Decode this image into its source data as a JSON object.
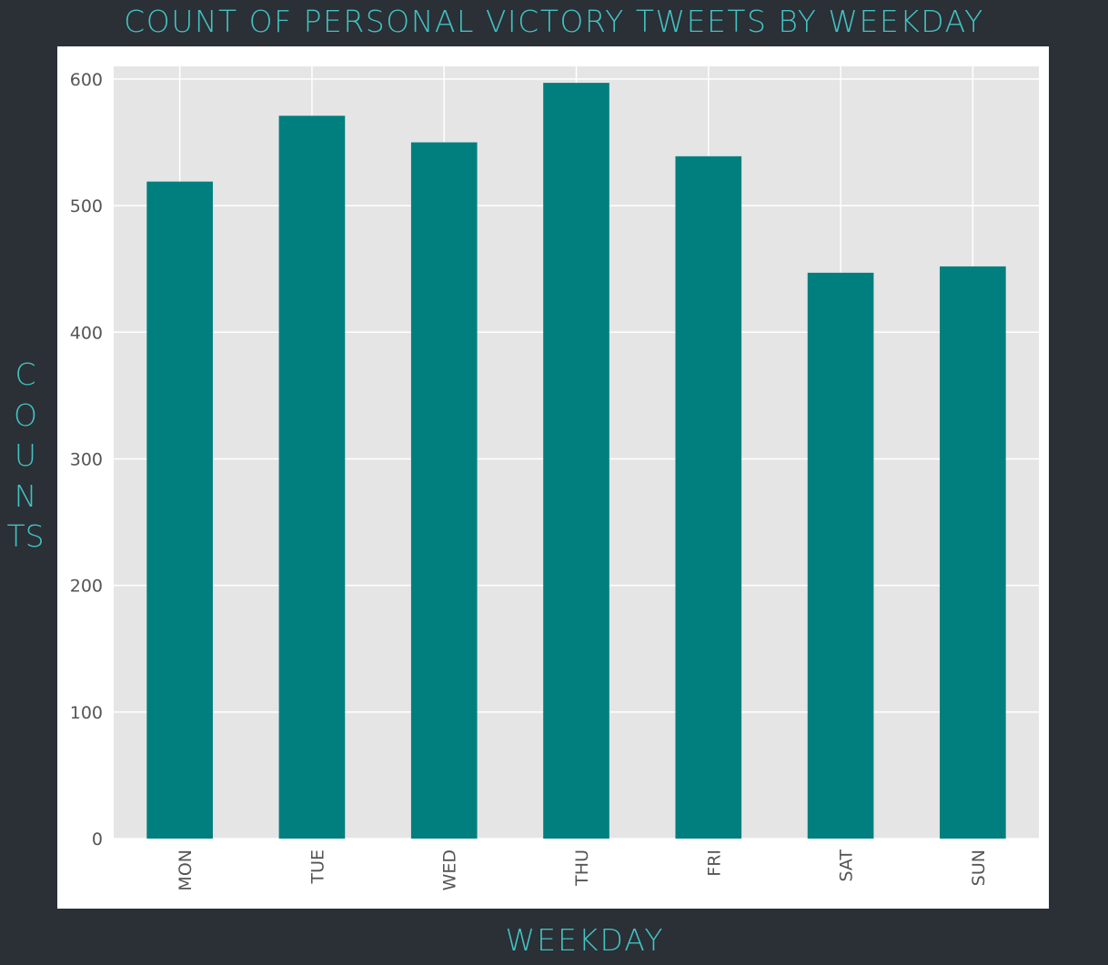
{
  "title": "COUNT OF PERSONAL VICTORY TWEETS BY WEEKDAY",
  "ylabel": "COUNTS",
  "xlabel": "WEEKDAY",
  "colors": {
    "background": "#2b2f36",
    "accent_text": "#41c2c0",
    "bar": "#007f7e",
    "plot_area": "#e5e5e5",
    "gridline": "#ffffff"
  },
  "chart_data": {
    "type": "bar",
    "title": "COUNT OF PERSONAL VICTORY TWEETS BY WEEKDAY",
    "xlabel": "WEEKDAY",
    "ylabel": "COUNTS",
    "categories": [
      "MON",
      "TUE",
      "WED",
      "THU",
      "FRI",
      "SAT",
      "SUN"
    ],
    "values": [
      519,
      571,
      550,
      597,
      539,
      447,
      452
    ],
    "ylim": [
      0,
      610
    ],
    "yticks": [
      "0",
      "100",
      "200",
      "300",
      "400",
      "500",
      "600"
    ],
    "grid": true,
    "legend": "none"
  }
}
